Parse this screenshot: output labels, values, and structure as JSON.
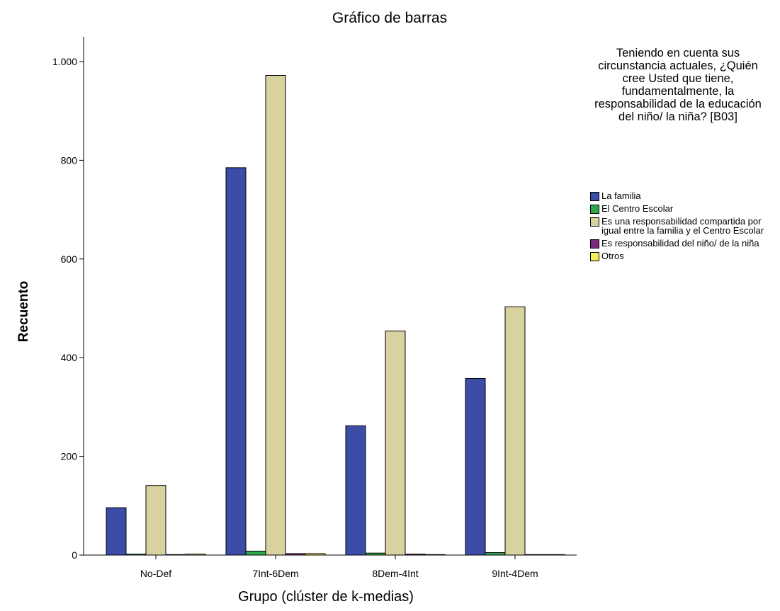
{
  "chart_data": {
    "type": "bar",
    "title": "Gráfico de barras",
    "xlabel": "Grupo (clúster de k-medias)",
    "ylabel": "Recuento",
    "ylim": [
      0,
      1050
    ],
    "yticks": [
      0,
      200,
      400,
      600,
      800,
      1000
    ],
    "ytick_labels": [
      "0",
      "200",
      "400",
      "600",
      "800",
      "1.000"
    ],
    "grid": false,
    "legend_position": "right",
    "legend_title": "Teniendo en cuenta sus circunstancia actuales, ¿Quién cree Usted que tiene, fundamentalmente, la responsabilidad de la educación del niño/ la niña? [B03]",
    "categories": [
      "No-Def",
      "7Int-6Dem",
      "8Dem-4Int",
      "9Int-4Dem"
    ],
    "series": [
      {
        "name": "La familia",
        "color": "#3c4da8",
        "values": [
          96,
          785,
          262,
          358
        ]
      },
      {
        "name": "El Centro Escolar",
        "color": "#2ea84a",
        "values": [
          2,
          8,
          4,
          5
        ]
      },
      {
        "name": "Es una responsabilidad compartida por igual entre la familia y el Centro Escolar",
        "color": "#d8d1a0",
        "values": [
          141,
          972,
          454,
          503
        ]
      },
      {
        "name": "Es responsabilidad del niño/ de la niña",
        "color": "#7b2a7f",
        "values": [
          1,
          3,
          2,
          1
        ]
      },
      {
        "name": "Otros",
        "color": "#f4ee5a",
        "values": [
          2,
          3,
          1,
          1
        ]
      }
    ]
  }
}
